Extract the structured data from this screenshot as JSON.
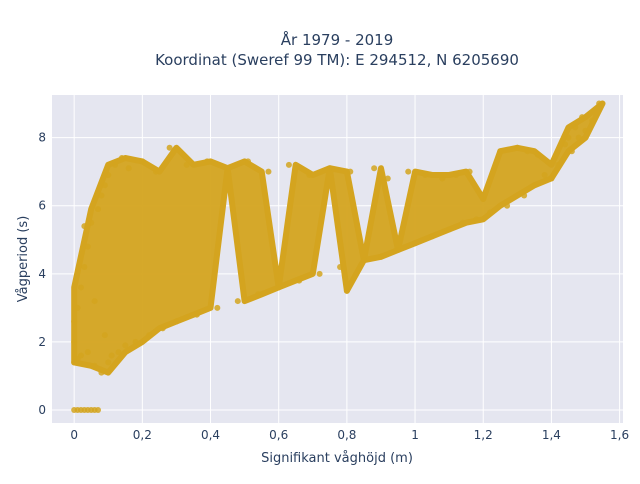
{
  "chart_data": {
    "type": "scatter",
    "title": "År 1979 - 2019",
    "subtitle": "Koordinat (Sweref 99 TM): E 294512, N 6205690",
    "xlabel": "Signifikant våghöjd (m)",
    "ylabel": "Vågperiod (s)",
    "xlim": [
      -0.065,
      1.61
    ],
    "ylim": [
      -0.38,
      9.25
    ],
    "x_ticks": [
      0,
      0.2,
      0.4,
      0.6,
      0.8,
      1,
      1.2,
      1.4,
      1.6
    ],
    "x_tick_labels": [
      "0",
      "0,2",
      "0,4",
      "0,6",
      "0,8",
      "1",
      "1,2",
      "1,4",
      "1,6"
    ],
    "y_ticks": [
      0,
      2,
      4,
      6,
      8
    ],
    "y_tick_labels": [
      "0",
      "2",
      "4",
      "6",
      "8"
    ],
    "grid": true,
    "legend": "none",
    "marker_color": "#d4a41f",
    "background_color": "#e5e6f0",
    "series": [
      {
        "points": [
          [
            0.0,
            0.0
          ],
          [
            0.01,
            0.0
          ],
          [
            0.02,
            0.0
          ],
          [
            0.03,
            0.0
          ],
          [
            0.04,
            0.0
          ],
          [
            0.05,
            0.0
          ],
          [
            0.06,
            0.0
          ],
          [
            0.07,
            0.0
          ],
          [
            0.0,
            1.4
          ],
          [
            0.0,
            2.0
          ],
          [
            0.0,
            2.6
          ],
          [
            0.01,
            1.5
          ],
          [
            0.01,
            3.0
          ],
          [
            0.02,
            1.6
          ],
          [
            0.02,
            3.6
          ],
          [
            0.03,
            4.2
          ],
          [
            0.03,
            5.4
          ],
          [
            0.04,
            1.7
          ],
          [
            0.04,
            4.8
          ],
          [
            0.05,
            5.5
          ],
          [
            0.06,
            1.3
          ],
          [
            0.06,
            3.2
          ],
          [
            0.07,
            5.9
          ],
          [
            0.08,
            1.1
          ],
          [
            0.08,
            6.3
          ],
          [
            0.09,
            2.2
          ],
          [
            0.09,
            6.6
          ],
          [
            0.1,
            1.4
          ],
          [
            0.1,
            6.9
          ],
          [
            0.11,
            1.6
          ],
          [
            0.12,
            7.2
          ],
          [
            0.13,
            1.7
          ],
          [
            0.14,
            7.4
          ],
          [
            0.15,
            1.9
          ],
          [
            0.16,
            7.1
          ],
          [
            0.18,
            2.0
          ],
          [
            0.2,
            7.3
          ],
          [
            0.22,
            2.2
          ],
          [
            0.24,
            7.0
          ],
          [
            0.26,
            2.4
          ],
          [
            0.28,
            7.7
          ],
          [
            0.3,
            2.6
          ],
          [
            0.33,
            7.2
          ],
          [
            0.36,
            2.8
          ],
          [
            0.39,
            7.3
          ],
          [
            0.42,
            3.0
          ],
          [
            0.45,
            7.1
          ],
          [
            0.48,
            3.2
          ],
          [
            0.51,
            7.3
          ],
          [
            0.54,
            3.4
          ],
          [
            0.57,
            7.0
          ],
          [
            0.6,
            3.6
          ],
          [
            0.63,
            7.2
          ],
          [
            0.66,
            3.8
          ],
          [
            0.69,
            6.9
          ],
          [
            0.72,
            4.0
          ],
          [
            0.75,
            7.1
          ],
          [
            0.78,
            4.2
          ],
          [
            0.81,
            7.0
          ],
          [
            0.8,
            3.5
          ],
          [
            0.85,
            4.4
          ],
          [
            0.88,
            7.1
          ],
          [
            0.9,
            4.5
          ],
          [
            0.92,
            6.8
          ],
          [
            0.95,
            4.7
          ],
          [
            0.98,
            7.0
          ],
          [
            1.0,
            4.9
          ],
          [
            1.03,
            6.9
          ],
          [
            1.05,
            5.1
          ],
          [
            1.08,
            6.8
          ],
          [
            1.1,
            5.3
          ],
          [
            1.12,
            6.9
          ],
          [
            1.14,
            5.5
          ],
          [
            1.16,
            7.0
          ],
          [
            1.18,
            5.6
          ],
          [
            1.2,
            6.2
          ],
          [
            1.22,
            5.8
          ],
          [
            1.25,
            7.6
          ],
          [
            1.27,
            6.0
          ],
          [
            1.3,
            7.7
          ],
          [
            1.32,
            6.3
          ],
          [
            1.33,
            7.6
          ],
          [
            1.35,
            6.6
          ],
          [
            1.36,
            7.5
          ],
          [
            1.38,
            6.9
          ],
          [
            1.4,
            6.8
          ],
          [
            1.42,
            7.2
          ],
          [
            1.44,
            7.8
          ],
          [
            1.45,
            8.0
          ],
          [
            1.46,
            7.6
          ],
          [
            1.47,
            8.3
          ],
          [
            1.48,
            8.0
          ],
          [
            1.49,
            8.6
          ],
          [
            1.5,
            8.2
          ],
          [
            1.52,
            8.5
          ],
          [
            1.54,
            9.0
          ]
        ]
      }
    ]
  }
}
